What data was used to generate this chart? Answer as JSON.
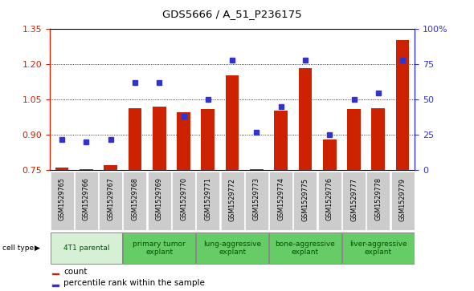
{
  "title": "GDS5666 / A_51_P236175",
  "samples": [
    "GSM1529765",
    "GSM1529766",
    "GSM1529767",
    "GSM1529768",
    "GSM1529769",
    "GSM1529770",
    "GSM1529771",
    "GSM1529772",
    "GSM1529773",
    "GSM1529774",
    "GSM1529775",
    "GSM1529776",
    "GSM1529777",
    "GSM1529778",
    "GSM1529779"
  ],
  "bar_values": [
    0.762,
    0.754,
    0.771,
    1.015,
    1.02,
    0.995,
    1.01,
    1.155,
    0.755,
    1.005,
    1.185,
    0.88,
    1.01,
    1.015,
    1.305
  ],
  "dot_values": [
    22,
    20,
    22,
    62,
    62,
    38,
    50,
    78,
    27,
    45,
    78,
    25,
    50,
    55,
    78
  ],
  "ylim": [
    0.75,
    1.35
  ],
  "yticks_left": [
    0.75,
    0.9,
    1.05,
    1.2,
    1.35
  ],
  "yticks_right": [
    0,
    25,
    50,
    75,
    100
  ],
  "bar_color": "#cc2200",
  "dot_color": "#3333cc",
  "cell_type_groups": [
    {
      "label": "4T1 parental",
      "start": 0,
      "end": 3,
      "color": "#d6f0d6"
    },
    {
      "label": "primary tumor\nexplant",
      "start": 3,
      "end": 6,
      "color": "#66cc66"
    },
    {
      "label": "lung-aggressive\nexplant",
      "start": 6,
      "end": 9,
      "color": "#66cc66"
    },
    {
      "label": "bone-aggressive\nexplant",
      "start": 9,
      "end": 12,
      "color": "#66cc66"
    },
    {
      "label": "liver-aggressive\nexplant",
      "start": 12,
      "end": 15,
      "color": "#66cc66"
    }
  ],
  "legend_count_label": "count",
  "legend_percentile_label": "percentile rank within the sample",
  "cell_type_label": "cell type",
  "bar_width": 0.55,
  "sample_cell_bgcolor": "#cccccc",
  "group_text_color": "#005500",
  "spine_color": "#000000"
}
